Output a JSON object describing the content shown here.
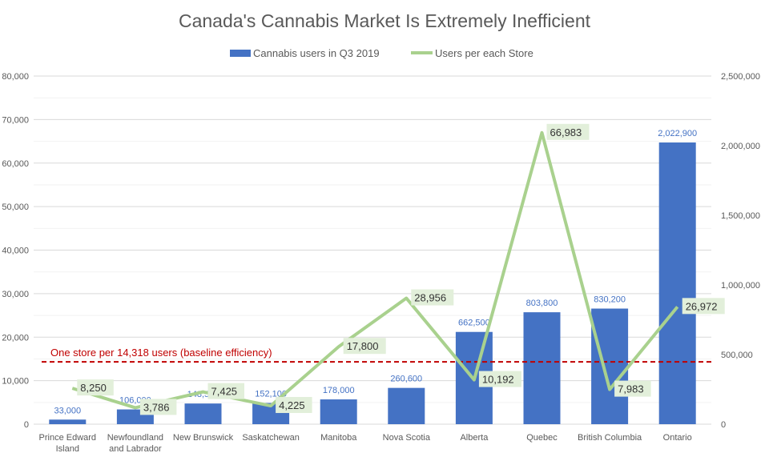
{
  "chart_data": {
    "type": "bar+line",
    "title": "Canada's Cannabis Market Is Extremely Inefficient",
    "categories": [
      "Prince Edward Island",
      "Newfoundland and Labrador",
      "New Brunswick",
      "Saskatchewan",
      "Manitoba",
      "Nova Scotia",
      "Alberta",
      "Quebec",
      "British Columbia",
      "Ontario"
    ],
    "category_lines": [
      [
        "Prince Edward",
        "Island"
      ],
      [
        "Newfoundland",
        "and Labrador"
      ],
      [
        "New Brunswick"
      ],
      [
        "Saskatchewan"
      ],
      [
        "Manitoba"
      ],
      [
        "Nova Scotia"
      ],
      [
        "Alberta"
      ],
      [
        "Quebec"
      ],
      [
        "British Columbia"
      ],
      [
        "Ontario"
      ]
    ],
    "series": [
      {
        "name": "Cannabis users in Q3 2019",
        "type": "bar",
        "axis": "right",
        "color": "#4472c4",
        "values": [
          33000,
          106000,
          148500,
          152100,
          178000,
          260600,
          662500,
          803800,
          830200,
          2022900
        ],
        "labels": [
          "33,000",
          "106,000",
          "148,500",
          "152,100",
          "178,000",
          "260,600",
          "662,500",
          "803,800",
          "830,200",
          "2,022,900"
        ]
      },
      {
        "name": "Users per each Store",
        "type": "line",
        "axis": "left",
        "color": "#a9d18e",
        "values": [
          8250,
          3786,
          7425,
          4225,
          17800,
          28956,
          10192,
          66983,
          7983,
          26972
        ],
        "labels": [
          "8,250",
          "3,786",
          "7,425",
          "4,225",
          "17,800",
          "28,956",
          "10,192",
          "66,983",
          "7,983",
          "26,972"
        ]
      }
    ],
    "left_axis": {
      "range": [
        0,
        80000
      ],
      "ticks": [
        "0",
        "10,000",
        "20,000",
        "30,000",
        "40,000",
        "50,000",
        "60,000",
        "70,000",
        "80,000"
      ]
    },
    "right_axis": {
      "range": [
        0,
        2500000
      ],
      "ticks": [
        "0",
        "500,000",
        "1,000,000",
        "1,500,000",
        "2,000,000",
        "2,500,000"
      ]
    },
    "baseline": {
      "value": 14318,
      "label": "One store per 14,318 users (baseline efficiency)",
      "color": "#c00000"
    },
    "legend": "top-center",
    "grid": true
  }
}
